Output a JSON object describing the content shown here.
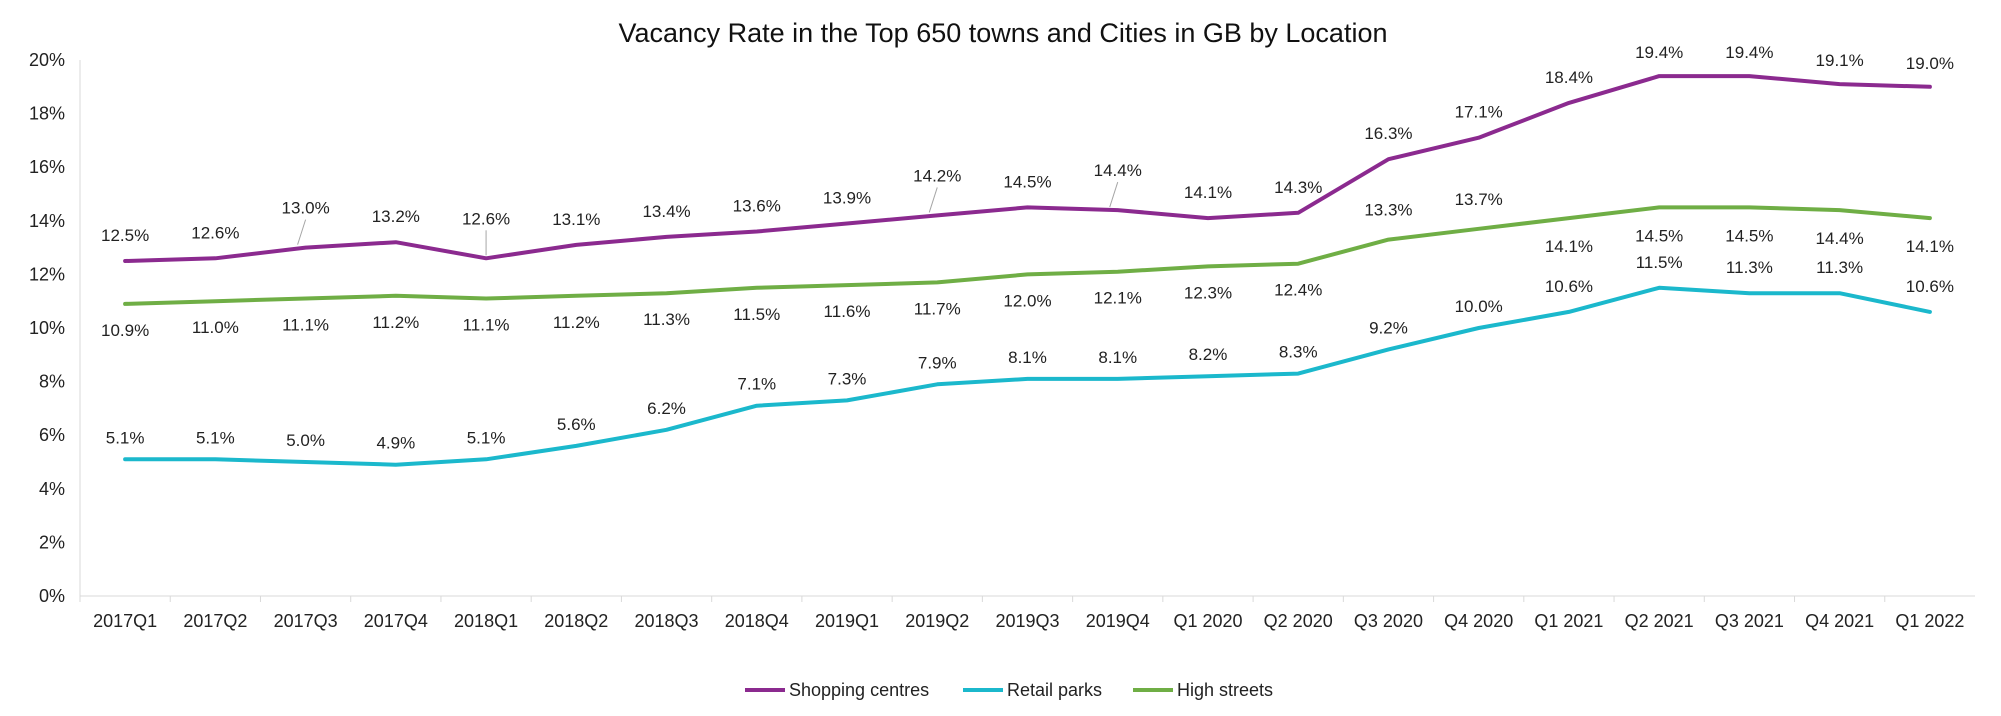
{
  "chart_data": {
    "type": "line",
    "title": "Vacancy Rate in the Top 650 towns and Cities in GB by Location",
    "xlabel": "",
    "ylabel": "",
    "ylim": [
      0,
      20
    ],
    "y_ticks": [
      "0%",
      "2%",
      "4%",
      "6%",
      "8%",
      "10%",
      "12%",
      "14%",
      "16%",
      "18%",
      "20%"
    ],
    "y_tick_values": [
      0,
      2,
      4,
      6,
      8,
      10,
      12,
      14,
      16,
      18,
      20
    ],
    "categories": [
      "2017Q1",
      "2017Q2",
      "2017Q3",
      "2017Q4",
      "2018Q1",
      "2018Q2",
      "2018Q3",
      "2018Q4",
      "2019Q1",
      "2019Q2",
      "2019Q3",
      "2019Q4",
      "Q1 2020",
      "Q2 2020",
      "Q3 2020",
      "Q4 2020",
      "Q1 2021",
      "Q2 2021",
      "Q3 2021",
      "Q4 2021",
      "Q1 2022"
    ],
    "grid": false,
    "legend_position": "bottom",
    "series": [
      {
        "name": "Shopping centres",
        "color": "#8B2A8F",
        "label_position": "above",
        "values": [
          12.5,
          12.6,
          13.0,
          13.2,
          12.6,
          13.1,
          13.4,
          13.6,
          13.9,
          14.2,
          14.5,
          14.4,
          14.1,
          14.3,
          16.3,
          17.1,
          18.4,
          19.4,
          19.4,
          19.1,
          19.0
        ],
        "labels": [
          "12.5%",
          "12.6%",
          "13.0%",
          "13.2%",
          "12.6%",
          "13.1%",
          "13.4%",
          "13.6%",
          "13.9%",
          "14.2%",
          "14.5%",
          "14.4%",
          "14.1%",
          "14.3%",
          "16.3%",
          "17.1%",
          "18.4%",
          "19.4%",
          "19.4%",
          "19.1%",
          "19.0%"
        ]
      },
      {
        "name": "Retail parks",
        "color": "#1BB8CC",
        "label_position": "above",
        "values": [
          5.1,
          5.1,
          5.0,
          4.9,
          5.1,
          5.6,
          6.2,
          7.1,
          7.3,
          7.9,
          8.1,
          8.1,
          8.2,
          8.3,
          9.2,
          10.0,
          10.6,
          11.5,
          11.3,
          11.3,
          10.6
        ],
        "labels": [
          "5.1%",
          "5.1%",
          "5.0%",
          "4.9%",
          "5.1%",
          "5.6%",
          "6.2%",
          "7.1%",
          "7.3%",
          "7.9%",
          "8.1%",
          "8.1%",
          "8.2%",
          "8.3%",
          "9.2%",
          "10.0%",
          "10.6%",
          "11.5%",
          "11.3%",
          "11.3%",
          "10.6%"
        ]
      },
      {
        "name": "High streets",
        "color": "#6FAE45",
        "label_position": "mixed",
        "values": [
          10.9,
          11.0,
          11.1,
          11.2,
          11.1,
          11.2,
          11.3,
          11.5,
          11.6,
          11.7,
          12.0,
          12.1,
          12.3,
          12.4,
          13.3,
          13.7,
          14.1,
          14.5,
          14.5,
          14.4,
          14.1
        ],
        "labels": [
          "10.9%",
          "11.0%",
          "11.1%",
          "11.2%",
          "11.1%",
          "11.2%",
          "11.3%",
          "11.5%",
          "11.6%",
          "11.7%",
          "12.0%",
          "12.1%",
          "12.3%",
          "12.4%",
          "13.3%",
          "13.7%",
          "14.1%",
          "14.5%",
          "14.5%",
          "14.4%",
          "14.1%"
        ]
      }
    ]
  }
}
